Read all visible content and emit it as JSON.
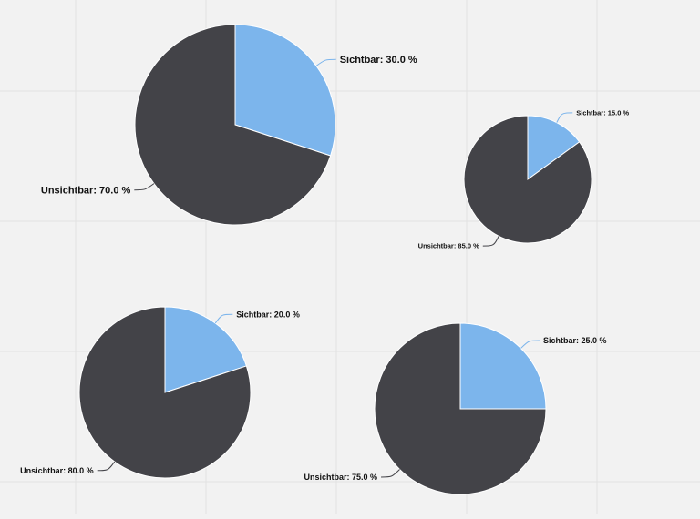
{
  "colors": {
    "background": "#f2f2f2",
    "grid": "#e2e2e2",
    "sichtbar": "#7cb5ec",
    "unsichtbar": "#434348",
    "connector": "#7cb5ec",
    "connector_dark": "#434348"
  },
  "chart_data": [
    {
      "type": "pie",
      "slices": [
        {
          "label": "Sichtbar",
          "value": 30.0,
          "text": "Sichtbar: 30.0 %"
        },
        {
          "label": "Unsichtbar",
          "value": 70.0,
          "text": "Unsichtbar: 70.0 %"
        }
      ]
    },
    {
      "type": "pie",
      "slices": [
        {
          "label": "Sichtbar",
          "value": 15.0,
          "text": "Sichtbar: 15.0 %"
        },
        {
          "label": "Unsichtbar",
          "value": 85.0,
          "text": "Unsichtbar: 85.0 %"
        }
      ]
    },
    {
      "type": "pie",
      "slices": [
        {
          "label": "Sichtbar",
          "value": 20.0,
          "text": "Sichtbar: 20.0 %"
        },
        {
          "label": "Unsichtbar",
          "value": 80.0,
          "text": "Unsichtbar: 80.0 %"
        }
      ]
    },
    {
      "type": "pie",
      "slices": [
        {
          "label": "Sichtbar",
          "value": 25.0,
          "text": "Sichtbar: 25.0 %"
        },
        {
          "label": "Unsichtbar",
          "value": 75.0,
          "text": "Unsichtbar: 75.0 %"
        }
      ]
    }
  ]
}
